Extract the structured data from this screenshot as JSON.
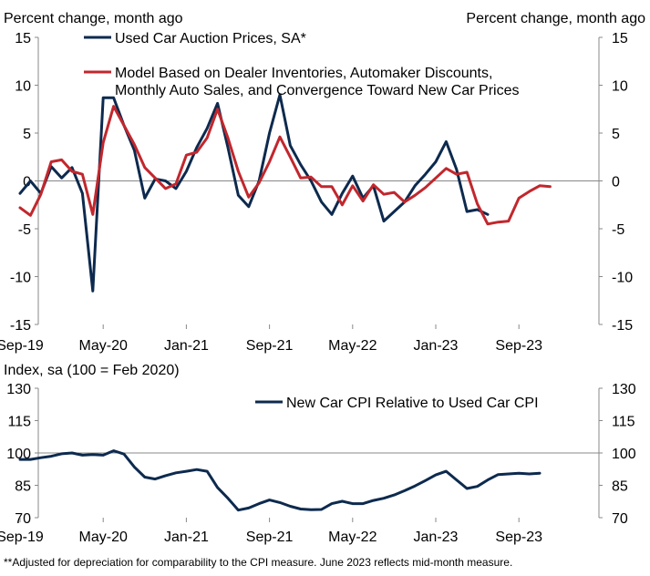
{
  "chart_data": [
    {
      "type": "line",
      "ylabel_left": "Percent change, month ago",
      "ylabel_right": "Percent change, month ago",
      "ylim": [
        -15,
        15
      ],
      "yticks": [
        "15",
        "10",
        "5",
        "0",
        "-5",
        "-10",
        "-15"
      ],
      "xticks": [
        "Sep-19",
        "May-20",
        "Jan-21",
        "Sep-21",
        "May-22",
        "Jan-23",
        "Sep-23"
      ],
      "x_start": "Sep-19",
      "series": [
        {
          "name": "Used Car Auction Prices, SA*",
          "color": "#0d2a4e",
          "values": [
            -1.3,
            0.0,
            -1.3,
            1.5,
            0.3,
            1.4,
            -1.3,
            -11.5,
            8.7,
            8.7,
            5.8,
            3.2,
            -1.8,
            0.2,
            0.0,
            -0.8,
            1.0,
            3.5,
            5.5,
            8.1,
            3.5,
            -1.5,
            -2.7,
            0.0,
            5.0,
            9.0,
            3.7,
            1.7,
            0.0,
            -2.2,
            -3.5,
            -1.3,
            0.5,
            -1.8,
            -0.5,
            -4.2,
            -3.2,
            -2.2,
            -0.5,
            0.7,
            2.0,
            4.1,
            1.2,
            -3.2,
            -3.0,
            -3.5
          ]
        },
        {
          "name": "Model Based on Dealer Inventories, Automaker Discounts, Monthly Auto Sales, and Convergence Toward New Car Prices",
          "color": "#c1272d",
          "values": [
            -2.8,
            -3.6,
            -1.4,
            2.0,
            2.2,
            1.0,
            0.7,
            -3.5,
            4.0,
            7.8,
            5.8,
            3.8,
            1.4,
            0.3,
            -0.8,
            -0.3,
            2.7,
            3.0,
            4.5,
            7.5,
            4.5,
            1.0,
            -1.7,
            -0.2,
            2.0,
            4.6,
            2.5,
            0.3,
            0.4,
            -0.6,
            -0.6,
            -2.5,
            -0.5,
            -2.1,
            -0.4,
            -1.4,
            -1.2,
            -2.2,
            -1.5,
            -0.7,
            0.3,
            1.3,
            0.7,
            0.9,
            -2.4,
            -4.5,
            -4.3,
            -4.2,
            -1.8,
            -1.1,
            -0.5,
            -0.6
          ]
        }
      ]
    },
    {
      "type": "line",
      "ylabel_left": "Index, sa (100 = Feb 2020)",
      "ylim": [
        70,
        130
      ],
      "yticks": [
        "130",
        "115",
        "100",
        "85",
        "70"
      ],
      "yticks_right": [
        "130",
        "115",
        "100",
        "85",
        "70"
      ],
      "xticks": [
        "Sep-19",
        "May-20",
        "Jan-21",
        "Sep-21",
        "May-22",
        "Jan-23",
        "Sep-23"
      ],
      "x_start": "Sep-19",
      "reference_line": 100,
      "series": [
        {
          "name": "New Car CPI Relative to Used Car CPI",
          "color": "#0d2a4e",
          "values": [
            97,
            97,
            97.8,
            98.5,
            99.6,
            100,
            99,
            99.3,
            99,
            101,
            99.5,
            93.5,
            88.8,
            87.9,
            89.5,
            90.8,
            91.5,
            92.3,
            91.5,
            84,
            79,
            73.5,
            74.5,
            76.5,
            78.2,
            77,
            75.3,
            74,
            73.7,
            73.8,
            76.5,
            77.6,
            76.5,
            76.5,
            78,
            79,
            80.5,
            82.5,
            84.7,
            87.2,
            89.8,
            91.5,
            87.5,
            83.5,
            84.5,
            87.5,
            90,
            90.3,
            90.6,
            90.3,
            90.6
          ]
        }
      ]
    }
  ],
  "footnote": "*Adjusted for depreciation for comparability to the CPI measure. June 2023 reflects mid-month measure."
}
